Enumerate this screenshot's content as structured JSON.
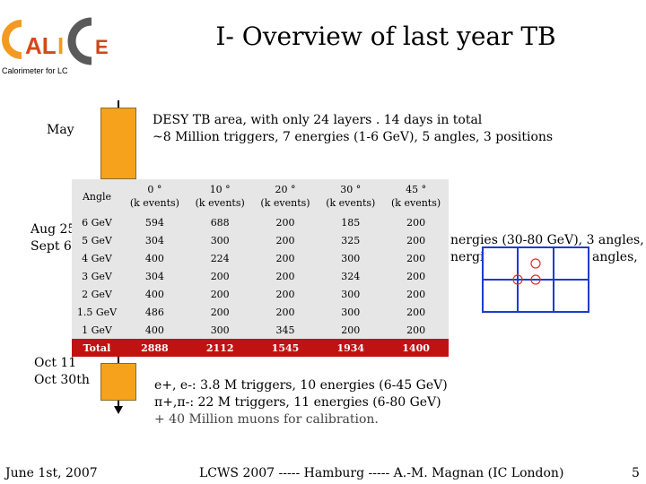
{
  "logo": {
    "text": "CALICE",
    "subtitle": "Calorimeter for LC"
  },
  "title": "I- Overview of last year TB",
  "timeline": {
    "may_label": "May",
    "aug_label_1": "Aug 25",
    "aug_label_2": "Sept 6th",
    "oct_label_1": "Oct 11",
    "oct_label_2": "Oct 30th"
  },
  "desy": {
    "line1": "DESY TB area, with only 24 layers . 14 days in total",
    "line2": "~8 Million triggers, 7 energies (1-6 GeV), 5 angles, 3 positions"
  },
  "cern_aug_partial": {
    "line1": "nergies (30-80 GeV), 3 angles,",
    "line2": "nergi",
    "line3": "angles,"
  },
  "table": {
    "angle_header": "Angle",
    "columns": [
      {
        "angle": "0 °",
        "unit": "(k events)"
      },
      {
        "angle": "10 °",
        "unit": "(k events)"
      },
      {
        "angle": "20 °",
        "unit": "(k events)"
      },
      {
        "angle": "30 °",
        "unit": "(k events)"
      },
      {
        "angle": "45 °",
        "unit": "(k events)"
      }
    ],
    "rows": [
      {
        "energy": "6 GeV",
        "values": [
          "594",
          "688",
          "200",
          "185",
          "200"
        ]
      },
      {
        "energy": "5 GeV",
        "values": [
          "304",
          "300",
          "200",
          "325",
          "200"
        ]
      },
      {
        "energy": "4 GeV",
        "values": [
          "400",
          "224",
          "200",
          "300",
          "200"
        ]
      },
      {
        "energy": "3 GeV",
        "values": [
          "304",
          "200",
          "200",
          "324",
          "200"
        ]
      },
      {
        "energy": "2 GeV",
        "values": [
          "400",
          "200",
          "200",
          "300",
          "200"
        ]
      },
      {
        "energy": "1.5 GeV",
        "values": [
          "486",
          "200",
          "200",
          "300",
          "200"
        ]
      },
      {
        "energy": "1 GeV",
        "values": [
          "400",
          "300",
          "345",
          "200",
          "200"
        ]
      }
    ],
    "total": {
      "label": "Total",
      "values": [
        "2888",
        "2112",
        "1545",
        "1934",
        "1400"
      ]
    }
  },
  "oct_info": {
    "line1": "e+, e-: 3.8 M triggers, 10 energies (6-45 GeV)",
    "line2": "π+,π-: 22 M triggers, 11 energies (6-80 GeV)",
    "line3": "+ 40 Million muons for calibration."
  },
  "footer": {
    "date": "June 1st, 2007",
    "center": "LCWS 2007 ----- Hamburg ----- A.-M. Magnan (IC London)",
    "page": "5"
  },
  "colors": {
    "box": "#f7a21c",
    "total_row": "#c11212",
    "grid": "#1a3ccf",
    "circle": "#e03030"
  }
}
